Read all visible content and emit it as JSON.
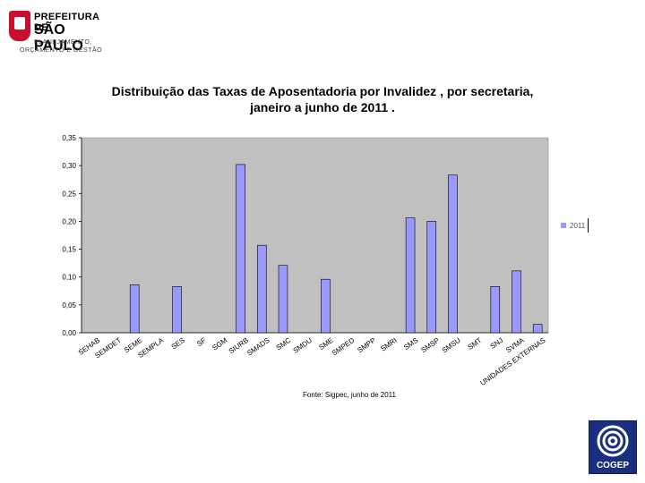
{
  "logo": {
    "line1": "PREFEITURA DE",
    "line2": "SÃO PAULO",
    "line3": "PLANEJAMENTO,",
    "line4": "ORÇAMENTO E GESTÃO"
  },
  "title_line1": "Distribuição das Taxas de Aposentadoria por Invalidez , por secretaria,",
  "title_line2": "janeiro a junho de 2011 .",
  "source": "Fonte: Sigpec, junho de 2011",
  "cogep_label": "COGEP",
  "colors": {
    "bar": "#9999ff",
    "plot_bg": "#c0c0c0",
    "bar_edge": "#000000"
  },
  "chart_data": {
    "type": "bar",
    "title": "Distribuição das Taxas de Aposentadoria por Invalidez , por secretaria, janeiro a junho de 2011 .",
    "categories": [
      "SEHAB",
      "SEMDET",
      "SEME",
      "SEMPLA",
      "SES",
      "SF",
      "SGM",
      "SIURB",
      "SMADS",
      "SMC",
      "SMDU",
      "SME",
      "SMPED",
      "SMPP",
      "SMRI",
      "SMS",
      "SMSP",
      "SMSU",
      "SMT",
      "SNJ",
      "SVMA",
      "UNIDADES EXTERNAS"
    ],
    "series": [
      {
        "name": "2011",
        "values": [
          0,
          0,
          0.086,
          0,
          0.083,
          0,
          0,
          0.302,
          0.157,
          0.121,
          0,
          0.096,
          0,
          0,
          0,
          0.206,
          0.2,
          0.283,
          0,
          0.083,
          0.111,
          0.015
        ]
      }
    ],
    "ylim": [
      0,
      0.35
    ],
    "yticks": [
      "0,00",
      "0,05",
      "0,10",
      "0,15",
      "0,20",
      "0,25",
      "0,30",
      "0,35"
    ],
    "legend": "right",
    "grid": false
  }
}
